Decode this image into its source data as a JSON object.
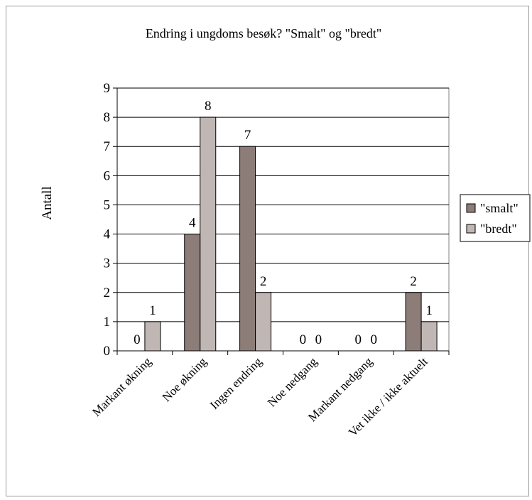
{
  "chart_data": {
    "type": "bar",
    "title": "Endring i ungdoms besøk? \"Smalt\" og \"bredt\"",
    "ylabel": "Antall",
    "xlabel": "",
    "ylim": [
      0,
      9
    ],
    "yticks": [
      0,
      1,
      2,
      3,
      4,
      5,
      6,
      7,
      8,
      9
    ],
    "grid": true,
    "legend_position": "right",
    "categories": [
      "Markant økning",
      "Noe økning",
      "Ingen endring",
      "Noe nedgang",
      "Markant nedgang",
      "Vet ikke / ikke aktuelt"
    ],
    "series": [
      {
        "name": "\"smalt\"",
        "values": [
          0,
          4,
          7,
          0,
          0,
          2
        ],
        "color": "#8c7d78"
      },
      {
        "name": "\"bredt\"",
        "values": [
          1,
          8,
          2,
          0,
          0,
          1
        ],
        "color": "#c0b6b4"
      }
    ]
  }
}
